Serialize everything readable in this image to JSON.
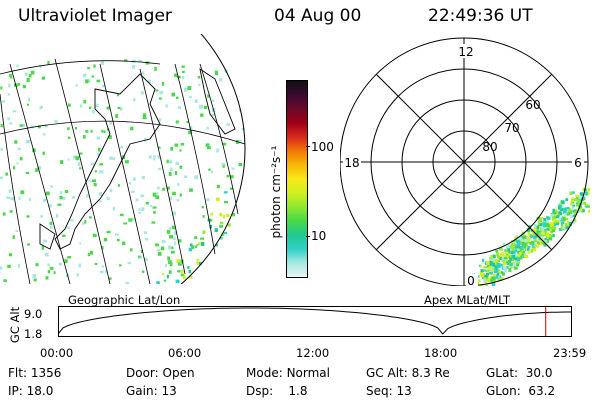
{
  "header": {
    "instrument": "Ultraviolet Imager",
    "date": "04 Aug 00",
    "time": "22:49:36 UT"
  },
  "colorbar": {
    "unit_label": "photon cm⁻²s⁻¹",
    "ticks": [
      "100",
      "10"
    ],
    "colors": [
      "#111111",
      "#3a0a30",
      "#6a0a28",
      "#a00018",
      "#d8281c",
      "#f07808",
      "#f8b808",
      "#f8e818",
      "#d0f020",
      "#90e830",
      "#48d848",
      "#20c890",
      "#30d0c8",
      "#a8e8e0",
      "#e8f4f4"
    ]
  },
  "map_left": {
    "label": "Geographic Lat/Lon"
  },
  "map_right": {
    "label": "Apex MLat/MLT",
    "mlt_labels": [
      "12",
      "18",
      "6",
      "0"
    ],
    "lat_labels": [
      "80",
      "70",
      "60"
    ]
  },
  "altitude_plot": {
    "ylabel": "GC Alt",
    "yticks": [
      "9.0",
      "1.8"
    ],
    "xticks": [
      "00:00",
      "06:00",
      "12:00",
      "18:00",
      "23:59"
    ],
    "marker_color": "#cc0000"
  },
  "info": {
    "row1": [
      {
        "label": "Flt:",
        "value": "1356"
      },
      {
        "label": "Door:",
        "value": "Open"
      },
      {
        "label": "Mode:",
        "value": "Normal"
      },
      {
        "label": "GC Alt:",
        "value": "8.3 Re"
      },
      {
        "label": "GLat:",
        "value": "30.0"
      }
    ],
    "row2": [
      {
        "label": "IP:",
        "value": "18.0"
      },
      {
        "label": "Gain:",
        "value": "13"
      },
      {
        "label": "Dsp:",
        "value": "1.8"
      },
      {
        "label": "Seq:",
        "value": "13"
      },
      {
        "label": "GLon:",
        "value": "63.2"
      }
    ]
  }
}
